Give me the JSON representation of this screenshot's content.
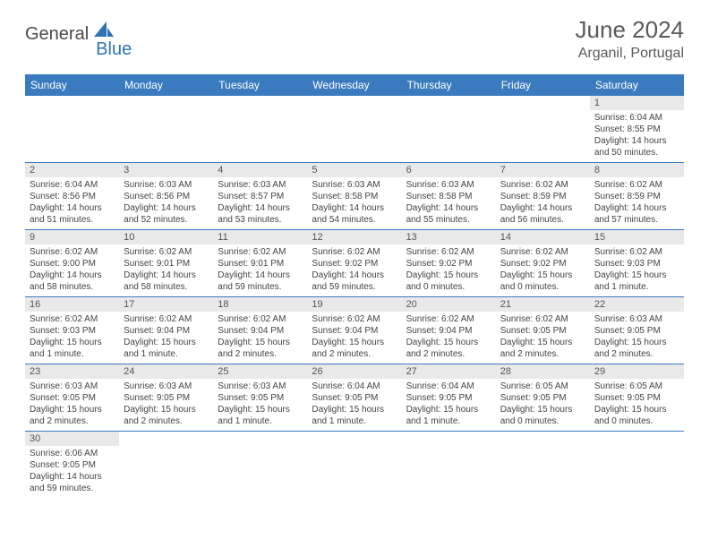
{
  "brand": {
    "general": "General",
    "blue": "Blue"
  },
  "title": "June 2024",
  "location": "Arganil, Portugal",
  "colors": {
    "header_bg": "#3a7bbf",
    "header_fg": "#ffffff",
    "daynum_bg": "#e9e9e9",
    "row_border": "#3a7bbf",
    "logo_blue": "#2e74b5",
    "text": "#4a4a4a"
  },
  "weekdays": [
    "Sunday",
    "Monday",
    "Tuesday",
    "Wednesday",
    "Thursday",
    "Friday",
    "Saturday"
  ],
  "weeks": [
    [
      null,
      null,
      null,
      null,
      null,
      null,
      {
        "n": "1",
        "sr": "Sunrise: 6:04 AM",
        "ss": "Sunset: 8:55 PM",
        "dl": "Daylight: 14 hours and 50 minutes."
      }
    ],
    [
      {
        "n": "2",
        "sr": "Sunrise: 6:04 AM",
        "ss": "Sunset: 8:56 PM",
        "dl": "Daylight: 14 hours and 51 minutes."
      },
      {
        "n": "3",
        "sr": "Sunrise: 6:03 AM",
        "ss": "Sunset: 8:56 PM",
        "dl": "Daylight: 14 hours and 52 minutes."
      },
      {
        "n": "4",
        "sr": "Sunrise: 6:03 AM",
        "ss": "Sunset: 8:57 PM",
        "dl": "Daylight: 14 hours and 53 minutes."
      },
      {
        "n": "5",
        "sr": "Sunrise: 6:03 AM",
        "ss": "Sunset: 8:58 PM",
        "dl": "Daylight: 14 hours and 54 minutes."
      },
      {
        "n": "6",
        "sr": "Sunrise: 6:03 AM",
        "ss": "Sunset: 8:58 PM",
        "dl": "Daylight: 14 hours and 55 minutes."
      },
      {
        "n": "7",
        "sr": "Sunrise: 6:02 AM",
        "ss": "Sunset: 8:59 PM",
        "dl": "Daylight: 14 hours and 56 minutes."
      },
      {
        "n": "8",
        "sr": "Sunrise: 6:02 AM",
        "ss": "Sunset: 8:59 PM",
        "dl": "Daylight: 14 hours and 57 minutes."
      }
    ],
    [
      {
        "n": "9",
        "sr": "Sunrise: 6:02 AM",
        "ss": "Sunset: 9:00 PM",
        "dl": "Daylight: 14 hours and 58 minutes."
      },
      {
        "n": "10",
        "sr": "Sunrise: 6:02 AM",
        "ss": "Sunset: 9:01 PM",
        "dl": "Daylight: 14 hours and 58 minutes."
      },
      {
        "n": "11",
        "sr": "Sunrise: 6:02 AM",
        "ss": "Sunset: 9:01 PM",
        "dl": "Daylight: 14 hours and 59 minutes."
      },
      {
        "n": "12",
        "sr": "Sunrise: 6:02 AM",
        "ss": "Sunset: 9:02 PM",
        "dl": "Daylight: 14 hours and 59 minutes."
      },
      {
        "n": "13",
        "sr": "Sunrise: 6:02 AM",
        "ss": "Sunset: 9:02 PM",
        "dl": "Daylight: 15 hours and 0 minutes."
      },
      {
        "n": "14",
        "sr": "Sunrise: 6:02 AM",
        "ss": "Sunset: 9:02 PM",
        "dl": "Daylight: 15 hours and 0 minutes."
      },
      {
        "n": "15",
        "sr": "Sunrise: 6:02 AM",
        "ss": "Sunset: 9:03 PM",
        "dl": "Daylight: 15 hours and 1 minute."
      }
    ],
    [
      {
        "n": "16",
        "sr": "Sunrise: 6:02 AM",
        "ss": "Sunset: 9:03 PM",
        "dl": "Daylight: 15 hours and 1 minute."
      },
      {
        "n": "17",
        "sr": "Sunrise: 6:02 AM",
        "ss": "Sunset: 9:04 PM",
        "dl": "Daylight: 15 hours and 1 minute."
      },
      {
        "n": "18",
        "sr": "Sunrise: 6:02 AM",
        "ss": "Sunset: 9:04 PM",
        "dl": "Daylight: 15 hours and 2 minutes."
      },
      {
        "n": "19",
        "sr": "Sunrise: 6:02 AM",
        "ss": "Sunset: 9:04 PM",
        "dl": "Daylight: 15 hours and 2 minutes."
      },
      {
        "n": "20",
        "sr": "Sunrise: 6:02 AM",
        "ss": "Sunset: 9:04 PM",
        "dl": "Daylight: 15 hours and 2 minutes."
      },
      {
        "n": "21",
        "sr": "Sunrise: 6:02 AM",
        "ss": "Sunset: 9:05 PM",
        "dl": "Daylight: 15 hours and 2 minutes."
      },
      {
        "n": "22",
        "sr": "Sunrise: 6:03 AM",
        "ss": "Sunset: 9:05 PM",
        "dl": "Daylight: 15 hours and 2 minutes."
      }
    ],
    [
      {
        "n": "23",
        "sr": "Sunrise: 6:03 AM",
        "ss": "Sunset: 9:05 PM",
        "dl": "Daylight: 15 hours and 2 minutes."
      },
      {
        "n": "24",
        "sr": "Sunrise: 6:03 AM",
        "ss": "Sunset: 9:05 PM",
        "dl": "Daylight: 15 hours and 2 minutes."
      },
      {
        "n": "25",
        "sr": "Sunrise: 6:03 AM",
        "ss": "Sunset: 9:05 PM",
        "dl": "Daylight: 15 hours and 1 minute."
      },
      {
        "n": "26",
        "sr": "Sunrise: 6:04 AM",
        "ss": "Sunset: 9:05 PM",
        "dl": "Daylight: 15 hours and 1 minute."
      },
      {
        "n": "27",
        "sr": "Sunrise: 6:04 AM",
        "ss": "Sunset: 9:05 PM",
        "dl": "Daylight: 15 hours and 1 minute."
      },
      {
        "n": "28",
        "sr": "Sunrise: 6:05 AM",
        "ss": "Sunset: 9:05 PM",
        "dl": "Daylight: 15 hours and 0 minutes."
      },
      {
        "n": "29",
        "sr": "Sunrise: 6:05 AM",
        "ss": "Sunset: 9:05 PM",
        "dl": "Daylight: 15 hours and 0 minutes."
      }
    ],
    [
      {
        "n": "30",
        "sr": "Sunrise: 6:06 AM",
        "ss": "Sunset: 9:05 PM",
        "dl": "Daylight: 14 hours and 59 minutes."
      },
      null,
      null,
      null,
      null,
      null,
      null
    ]
  ]
}
